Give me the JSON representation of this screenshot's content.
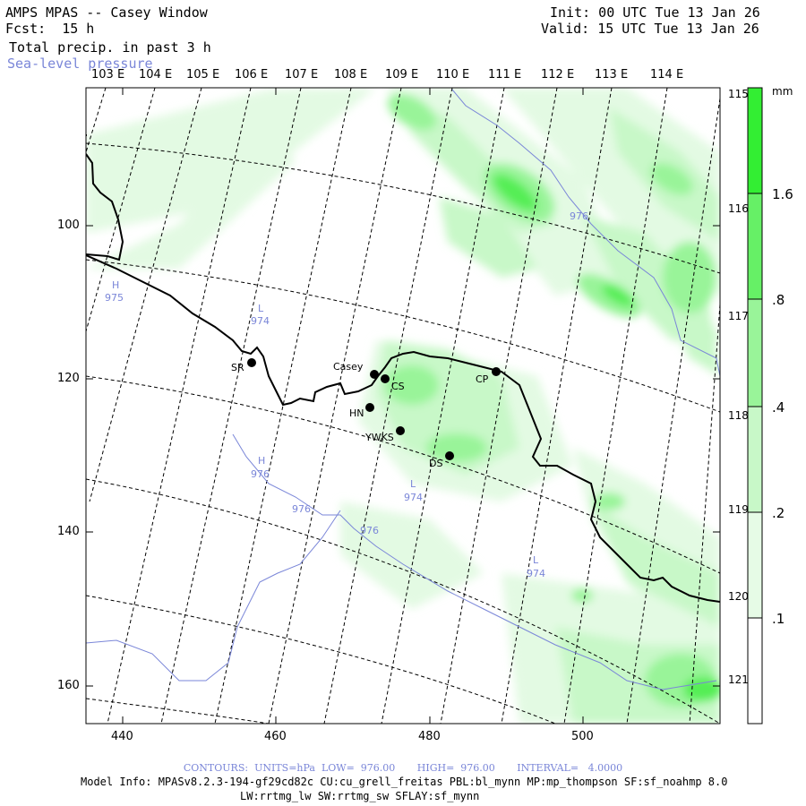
{
  "header": {
    "title": "AMPS MPAS -- Casey Window",
    "forecast": "Fcst:  15 h",
    "field1": "Total precip. in past 3 h",
    "field2": "Sea-level pressure",
    "init": "Init: 00 UTC Tue 13 Jan 26",
    "valid": "Valid: 15 UTC Tue 13 Jan 26"
  },
  "map": {
    "top_longitude_labels": [
      "103 E",
      "104 E",
      "105 E",
      "106 E",
      "107 E",
      "108 E",
      "109 E",
      "110 E",
      "111 E",
      "112 E",
      "113 E",
      "114 E"
    ],
    "right_longitude_labels": [
      "115 E",
      "116 E",
      "117 E",
      "118 E",
      "119 E",
      "120 E",
      "121 E"
    ],
    "x_ticks": [
      "440",
      "460",
      "480",
      "500"
    ],
    "y_ticks": [
      "100",
      "120",
      "140",
      "160"
    ],
    "stations": [
      {
        "name": "SR"
      },
      {
        "name": "Casey"
      },
      {
        "name": "CS"
      },
      {
        "name": "HN"
      },
      {
        "name": "YWKS"
      },
      {
        "name": "DS"
      },
      {
        "name": "CP"
      }
    ],
    "pressure_labels": [
      {
        "text": "H"
      },
      {
        "text": "975"
      },
      {
        "text": "L"
      },
      {
        "text": "974"
      },
      {
        "text": "976"
      },
      {
        "text": "H"
      },
      {
        "text": "976"
      },
      {
        "text": "976"
      },
      {
        "text": "976"
      },
      {
        "text": "L"
      },
      {
        "text": "974"
      },
      {
        "text": "L"
      },
      {
        "text": "974"
      }
    ]
  },
  "colorbar": {
    "unit": "mm",
    "labels": [
      "1.6",
      ".8",
      ".4",
      ".2",
      ".1"
    ],
    "colors": [
      "#33ee33",
      "#66f066",
      "#99f499",
      "#c8f8c8",
      "#e6fbe6",
      "#ffffff"
    ]
  },
  "footer": {
    "contours": "CONTOURS:  UNITS=hPa  LOW=  976.00       HIGH=  976.00       INTERVAL=   4.0000",
    "model_info": "Model Info: MPASv8.2.3-194-gf29cd82c CU:cu_grell_freitas PBL:bl_mynn MP:mp_thompson SF:sf_noahmp 8.0",
    "model_info2": "LW:rrtmg_lw SW:rrtmg_sw SFLAY:sf_mynn"
  },
  "colors": {
    "contour": "#7a86d8",
    "coast": "#000000",
    "precip_light": "#c8f8c8",
    "precip_dark": "#33ee33"
  }
}
